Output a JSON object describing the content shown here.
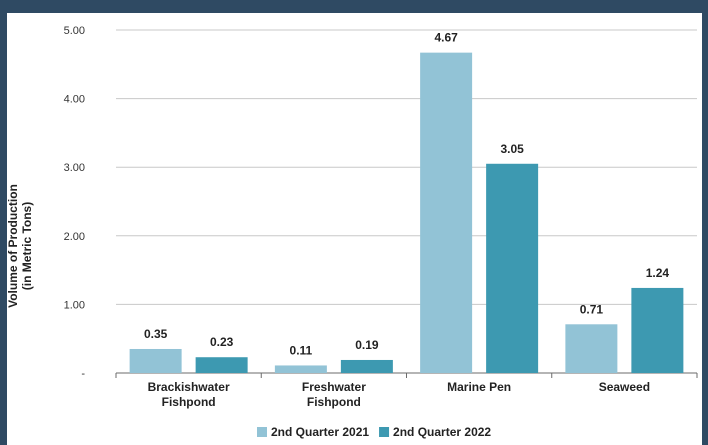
{
  "chart_data": {
    "type": "bar",
    "categories": [
      [
        "Brackishwater",
        "Fishpond"
      ],
      [
        "Freshwater",
        "Fishpond"
      ],
      [
        "Marine Pen"
      ],
      [
        "Seaweed"
      ]
    ],
    "series": [
      {
        "name": "2nd Quarter 2021",
        "values": [
          0.35,
          0.11,
          4.67,
          0.71
        ],
        "labels": [
          "0.35",
          "0.11",
          "4.67",
          "0.71"
        ],
        "color": "#92c3d6"
      },
      {
        "name": "2nd Quarter 2022",
        "values": [
          0.23,
          0.19,
          3.05,
          1.24
        ],
        "labels": [
          "0.23",
          "0.19",
          "3.05",
          "1.24"
        ],
        "color": "#3d99b1"
      }
    ],
    "ylabel": [
      "Volume of Production",
      "(in Metric Tons)"
    ],
    "yticks": [
      {
        "value": 0,
        "label": "-"
      },
      {
        "value": 1,
        "label": "1.00"
      },
      {
        "value": 2,
        "label": "2.00"
      },
      {
        "value": 3,
        "label": "3.00"
      },
      {
        "value": 4,
        "label": "4.00"
      },
      {
        "value": 5,
        "label": "5.00"
      }
    ],
    "ylim": [
      0,
      5
    ],
    "grid": true,
    "legend_position": "bottom"
  },
  "colors": {
    "background_frame": "#2f4a63",
    "gridline": "#c8c8c8",
    "axis": "#6b6b6b"
  }
}
